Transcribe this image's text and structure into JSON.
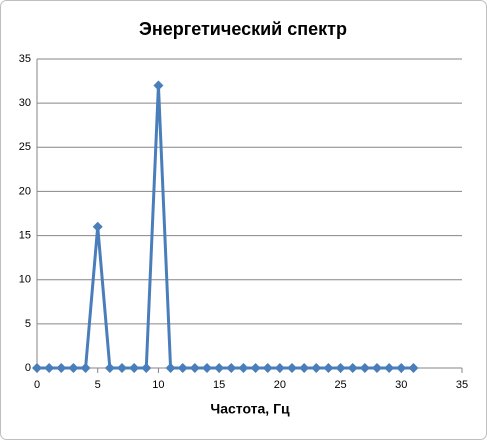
{
  "chart_data": {
    "type": "line",
    "title": "Энергетический спектр",
    "x_label": "Частота, Гц",
    "x": [
      0,
      1,
      2,
      3,
      4,
      5,
      6,
      7,
      8,
      9,
      10,
      11,
      12,
      13,
      14,
      15,
      16,
      17,
      18,
      19,
      20,
      21,
      22,
      23,
      24,
      25,
      26,
      27,
      28,
      29,
      30,
      31
    ],
    "values": [
      0,
      0,
      0,
      0,
      0,
      16,
      0,
      0,
      0,
      0,
      32,
      0,
      0,
      0,
      0,
      0,
      0,
      0,
      0,
      0,
      0,
      0,
      0,
      0,
      0,
      0,
      0,
      0,
      0,
      0,
      0,
      0
    ],
    "color": "#4a7ebb",
    "xlim": [
      0,
      35
    ],
    "xticks": [
      0,
      5,
      10,
      15,
      20,
      25,
      30,
      35
    ],
    "ylim": [
      0,
      35
    ],
    "yticks": [
      0,
      5,
      10,
      15,
      20,
      25,
      30,
      35
    ],
    "grid": true
  }
}
